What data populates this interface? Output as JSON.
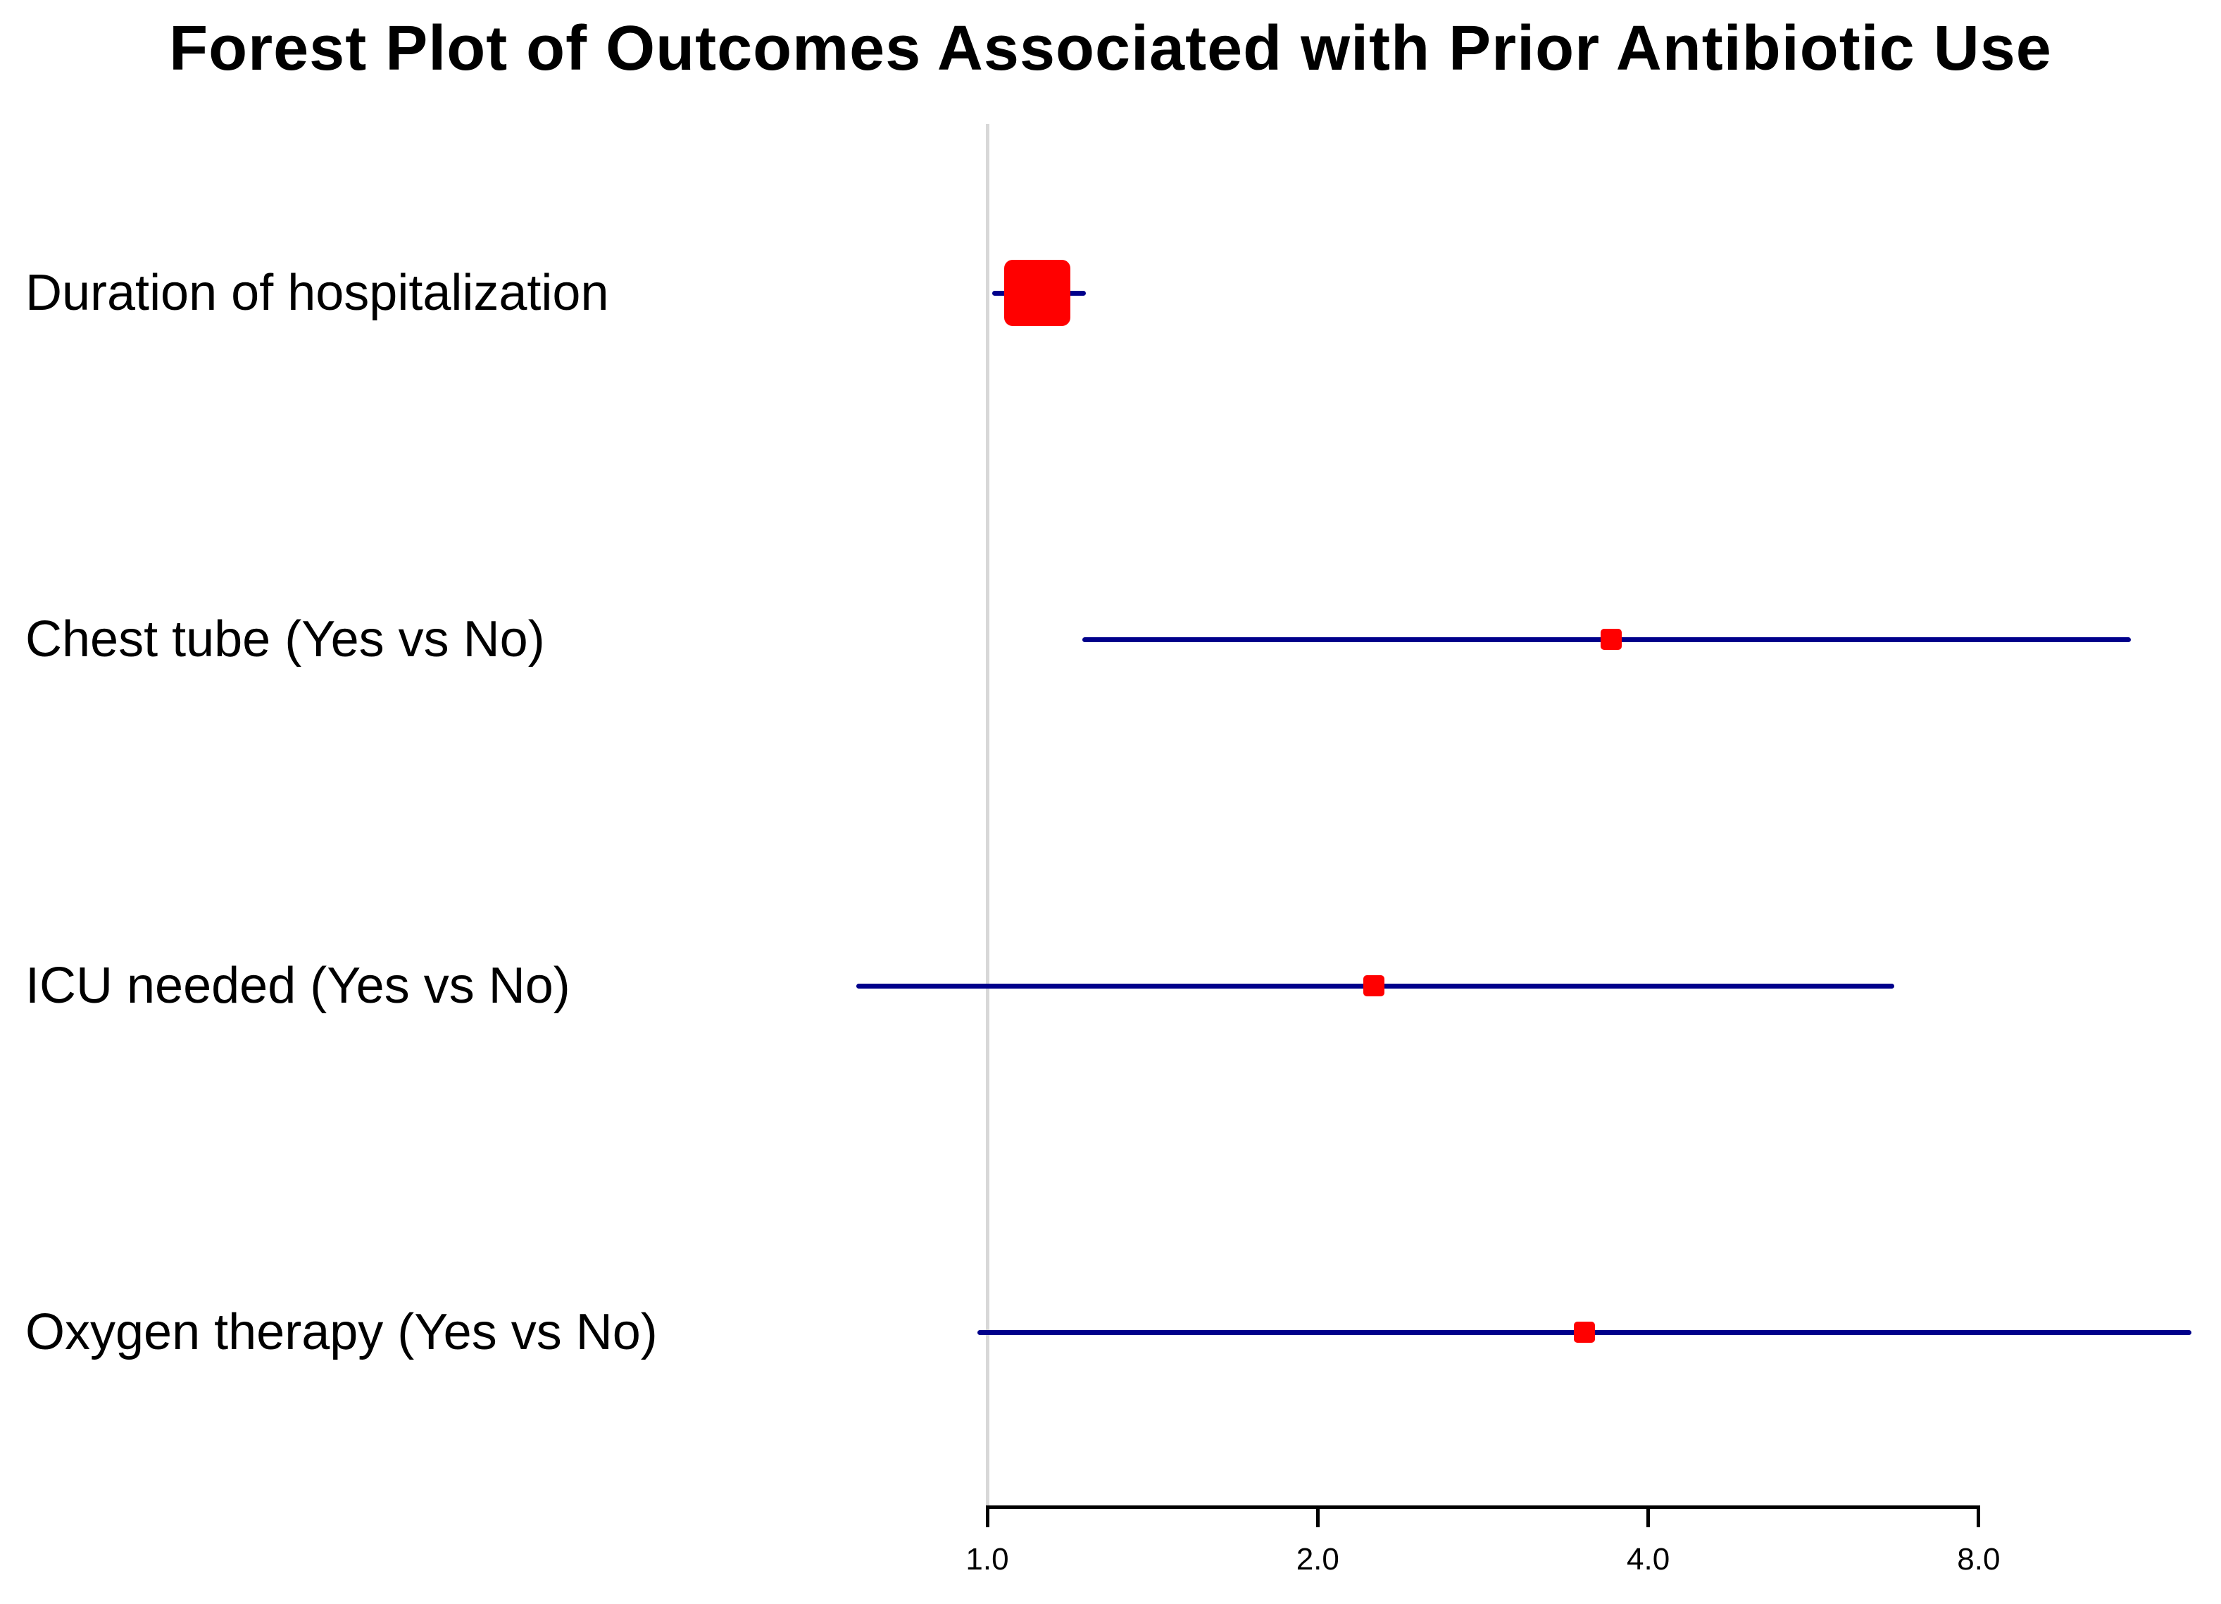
{
  "chart_data": {
    "type": "forest",
    "title": "Forest Plot of Outcomes Associated with Prior Antibiotic Use",
    "scale": "log2",
    "reference_value": 1.0,
    "x_axis": {
      "ticks": [
        1.0,
        2.0,
        4.0,
        8.0
      ],
      "tick_labels": [
        "1.0",
        "2.0",
        "4.0",
        "8.0"
      ],
      "range_shown": [
        1.0,
        8.0
      ]
    },
    "rows": [
      {
        "label": "Duration of hospitalization",
        "estimate": 1.11,
        "ci_lower": 1.01,
        "ci_upper": 1.23,
        "marker_size": "large"
      },
      {
        "label": "Chest tube (Yes vs No)",
        "estimate": 3.7,
        "ci_lower": 1.22,
        "ci_upper": 11.0,
        "marker_size": "small"
      },
      {
        "label": "ICU needed (Yes vs No)",
        "estimate": 2.25,
        "ci_lower": 0.76,
        "ci_upper": 6.7,
        "marker_size": "small"
      },
      {
        "label": "Oxygen therapy (Yes vs No)",
        "estimate": 3.5,
        "ci_lower": 0.98,
        "ci_upper": 12.5,
        "marker_size": "small"
      }
    ],
    "colors": {
      "marker": "#ff0000",
      "ci_line": "#00008b",
      "reference_line": "#d8d8d8",
      "axis": "#000000",
      "text": "#000000",
      "background": "#ffffff"
    },
    "legend": null,
    "grid": "off"
  }
}
